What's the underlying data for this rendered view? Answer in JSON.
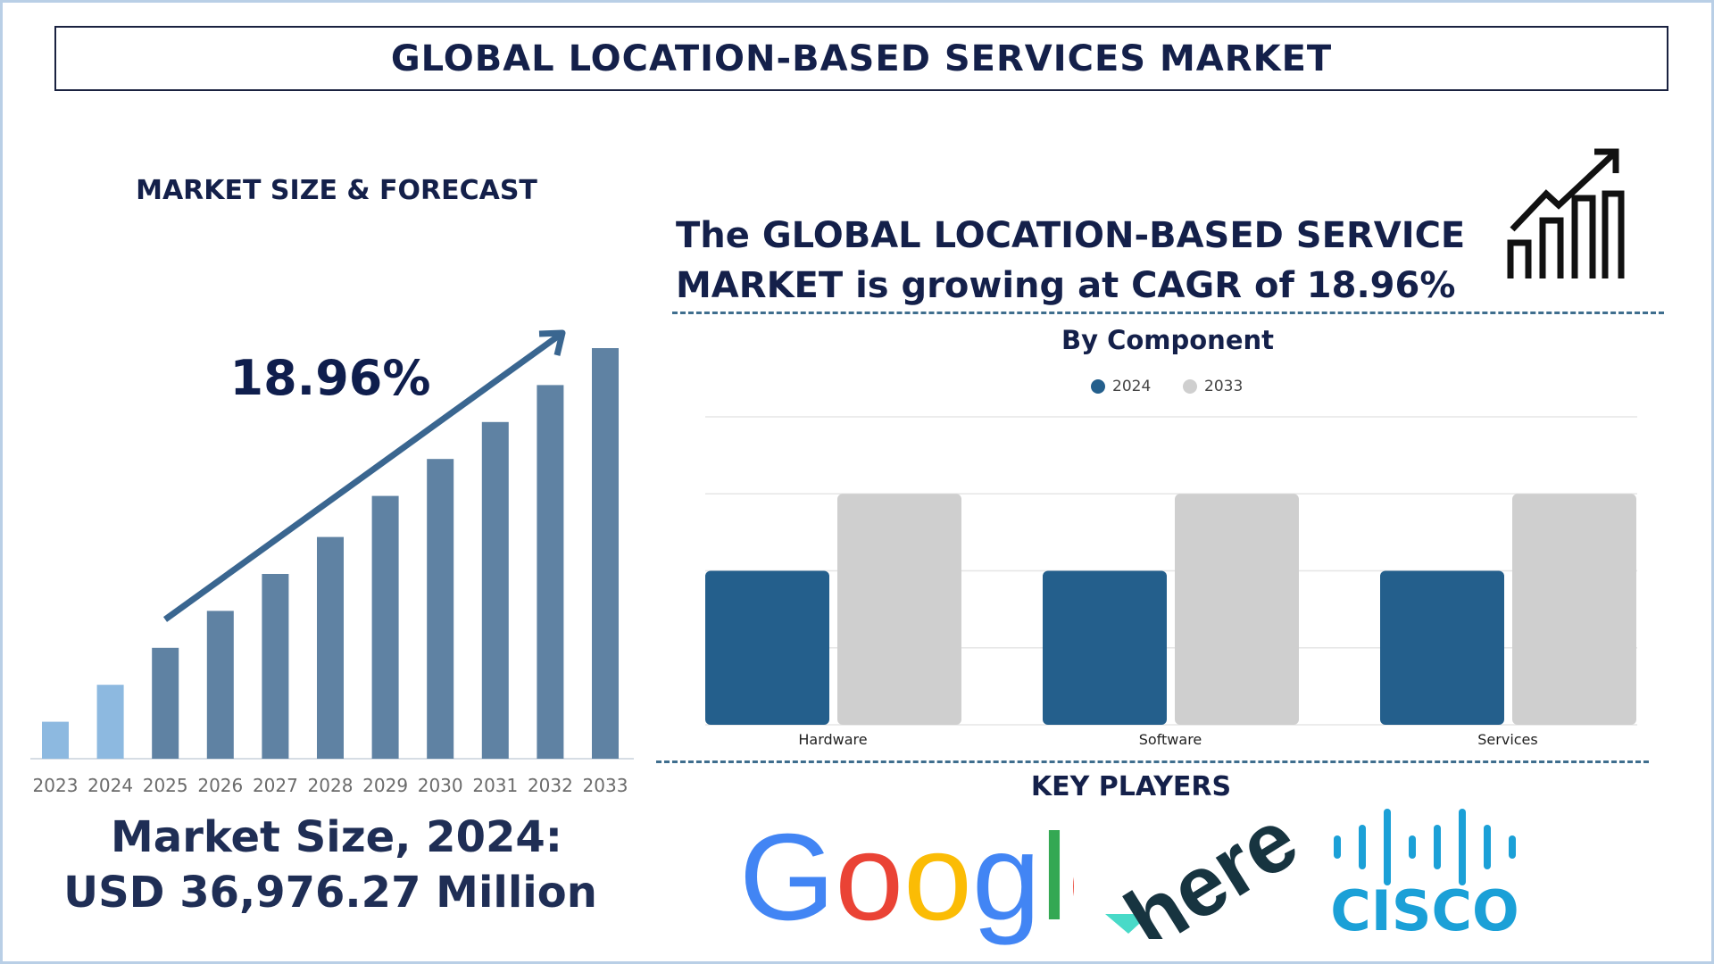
{
  "title": "GLOBAL LOCATION-BASED SERVICES MARKET",
  "left_panel": {
    "heading": "MARKET SIZE & FORECAST",
    "cagr_label": "18.96%",
    "market_size_line1": "Market Size, 2024:",
    "market_size_line2": "USD 36,976.27 Million"
  },
  "right_panel": {
    "headline_line1": "The GLOBAL LOCATION-BASED SERVICE",
    "headline_line2": "MARKET is growing at CAGR of 18.96%",
    "key_players_heading": "KEY PLAYERS",
    "key_players": [
      "Google",
      "here",
      "CISCO"
    ]
  },
  "chart_data": [
    {
      "type": "bar",
      "title": "MARKET SIZE & FORECAST",
      "categories": [
        "2023",
        "2024",
        "2025",
        "2026",
        "2027",
        "2028",
        "2029",
        "2030",
        "2031",
        "2032",
        "2033"
      ],
      "values_relative_percent": [
        9,
        18,
        27,
        36,
        45,
        54,
        64,
        73,
        82,
        91,
        100
      ],
      "colors": [
        "#8db9e0",
        "#8db9e0",
        "#5f82a3",
        "#5f82a3",
        "#5f82a3",
        "#5f82a3",
        "#5f82a3",
        "#5f82a3",
        "#5f82a3",
        "#5f82a3",
        "#5f82a3"
      ],
      "annotation": "18.96%",
      "arrow_color": "#3a6690",
      "grid": false
    },
    {
      "type": "bar",
      "title": "By Component",
      "categories": [
        "Hardware",
        "Software",
        "Services"
      ],
      "series": [
        {
          "name": "2024",
          "values": [
            2,
            2,
            2
          ],
          "color": "#245f8c"
        },
        {
          "name": "2033",
          "values": [
            3,
            3,
            3
          ],
          "color": "#cfcfcf"
        }
      ],
      "ylim": [
        0,
        4
      ],
      "grid": true,
      "legend": "top-center"
    }
  ]
}
